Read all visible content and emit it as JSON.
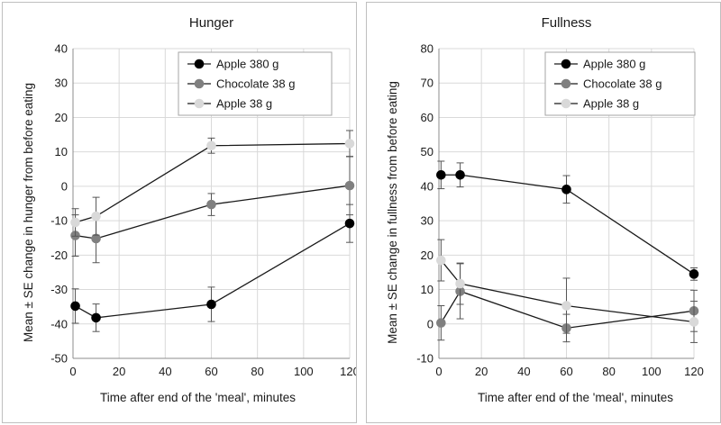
{
  "chart_data": [
    {
      "type": "line",
      "title": "Hunger",
      "xlabel": "Time after end of the 'meal', minutes",
      "ylabel": "Mean ± SE change in hunger from before eating",
      "xlim": [
        0,
        120
      ],
      "ylim": [
        -50,
        40
      ],
      "xticks": [
        0,
        20,
        40,
        60,
        80,
        100,
        120
      ],
      "yticks": [
        -50,
        -40,
        -30,
        -20,
        -10,
        0,
        10,
        20,
        30,
        40
      ],
      "grid": "x and y",
      "legend": "top-right",
      "series": [
        {
          "name": "Apple 380 g",
          "color": "#000000",
          "x": [
            1,
            10,
            60,
            120
          ],
          "y": [
            -34.8,
            -38.2,
            -34.3,
            -10.8
          ],
          "err": [
            5.0,
            4.0,
            5.0,
            5.5
          ]
        },
        {
          "name": "Chocolate 38 g",
          "color": "#808080",
          "x": [
            1,
            10,
            60,
            120
          ],
          "y": [
            -14.3,
            -15.2,
            -5.3,
            0.2
          ],
          "err": [
            6.0,
            7.0,
            3.2,
            8.5
          ]
        },
        {
          "name": "Apple 38 g",
          "color": "#d9d9d9",
          "x": [
            1,
            10,
            60,
            120
          ],
          "y": [
            -10.5,
            -8.7,
            11.8,
            12.4
          ],
          "err": [
            4.0,
            5.5,
            2.2,
            3.8
          ]
        }
      ]
    },
    {
      "type": "line",
      "title": "Fullness",
      "xlabel": "Time after end of the 'meal', minutes",
      "ylabel": "Mean ± SE change in fullness from before eating",
      "xlim": [
        0,
        120
      ],
      "ylim": [
        -10,
        80
      ],
      "xticks": [
        0,
        20,
        40,
        60,
        80,
        100,
        120
      ],
      "yticks": [
        -10,
        0,
        10,
        20,
        30,
        40,
        50,
        60,
        70,
        80
      ],
      "grid": "x and y",
      "legend": "top-right",
      "series": [
        {
          "name": "Apple 380 g",
          "color": "#000000",
          "x": [
            1,
            10,
            60,
            120
          ],
          "y": [
            43.3,
            43.3,
            39.1,
            14.5
          ],
          "err": [
            4.0,
            3.5,
            4.0,
            1.8
          ]
        },
        {
          "name": "Chocolate 38 g",
          "color": "#808080",
          "x": [
            1,
            10,
            60,
            120
          ],
          "y": [
            0.3,
            9.5,
            -1.2,
            3.8
          ],
          "err": [
            5.0,
            8.0,
            4.0,
            6.0
          ]
        },
        {
          "name": "Apple 38 g",
          "color": "#d9d9d9",
          "x": [
            1,
            10,
            60,
            120
          ],
          "y": [
            18.5,
            11.7,
            5.3,
            0.6
          ],
          "err": [
            6.0,
            6.0,
            8.0,
            6.0
          ]
        }
      ]
    }
  ]
}
